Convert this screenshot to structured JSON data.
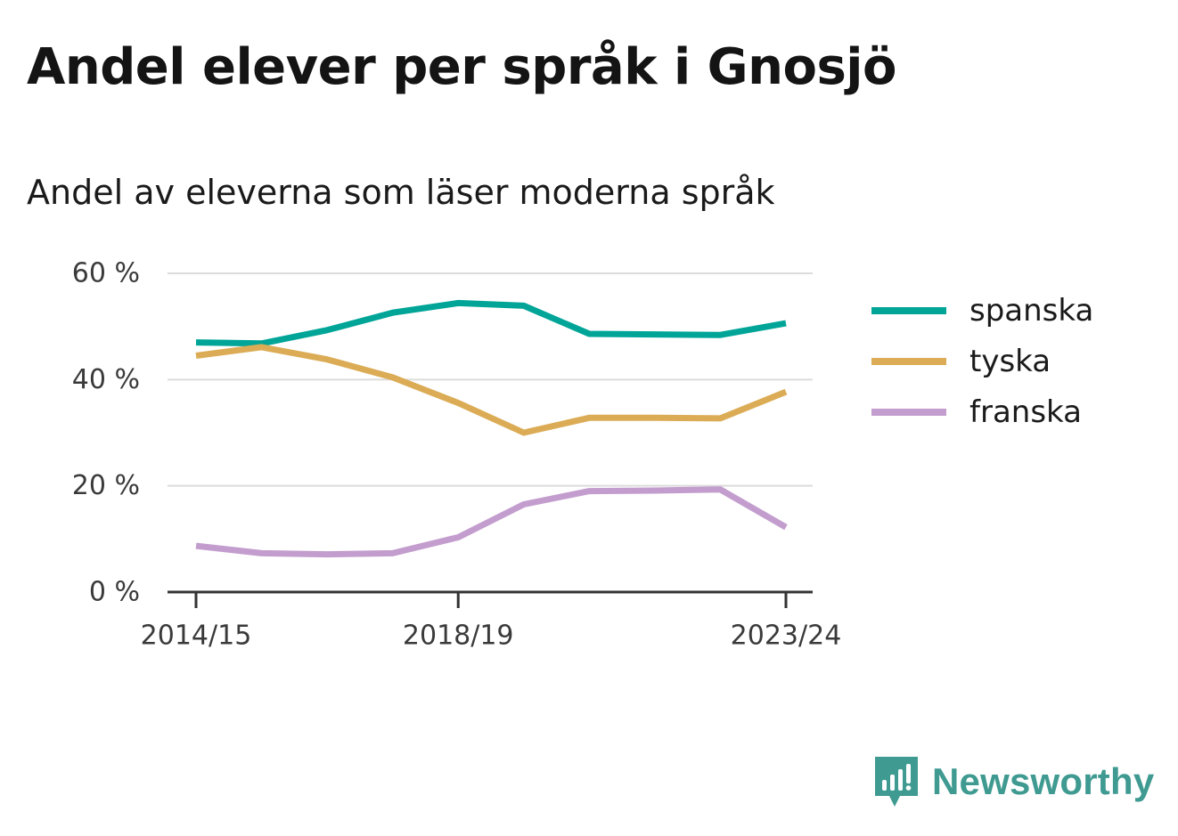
{
  "title": "Andel elever per språk i Gnosjö",
  "subtitle": "Andel av eleverna som läser moderna språk",
  "brand": {
    "name": "Newsworthy",
    "icon": "newsworthy-logo-icon",
    "color": "#3f9a91"
  },
  "chart_data": {
    "type": "line",
    "x": [
      "2014/15",
      "2015/16",
      "2016/17",
      "2017/18",
      "2018/19",
      "2019/20",
      "2020/21",
      "2021/22",
      "2022/23",
      "2023/24"
    ],
    "x_tick_labels": [
      "2014/15",
      "2018/19",
      "2023/24"
    ],
    "ylim": [
      0,
      60
    ],
    "y_ticks": [
      0,
      20,
      40,
      60
    ],
    "y_tick_labels": [
      "0 %",
      "20 %",
      "40 %",
      "60 %"
    ],
    "grid": true,
    "legend_position": "right",
    "series": [
      {
        "name": "spanska",
        "color": "#00a598",
        "values": [
          47.0,
          46.8,
          49.3,
          52.6,
          54.4,
          53.9,
          48.6,
          48.5,
          48.4,
          50.6
        ]
      },
      {
        "name": "tyska",
        "color": "#dbac55",
        "values": [
          44.5,
          46.1,
          43.8,
          40.4,
          35.6,
          30.0,
          32.8,
          32.8,
          32.7,
          37.7
        ]
      },
      {
        "name": "franska",
        "color": "#c39dce",
        "values": [
          8.7,
          7.3,
          7.1,
          7.3,
          10.3,
          16.5,
          19.0,
          19.1,
          19.3,
          12.2
        ]
      }
    ]
  }
}
